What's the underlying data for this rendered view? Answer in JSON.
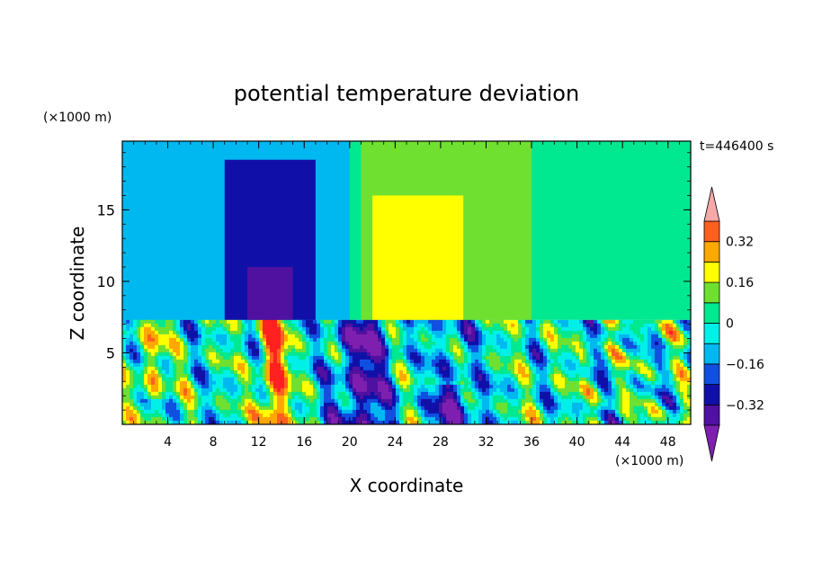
{
  "chart_data": {
    "type": "heatmap",
    "title": "potential temperature deviation",
    "xlabel": "X coordinate",
    "ylabel": "Z coordinate",
    "x_unit": "(×1000 m)",
    "y_unit": "(×1000 m)",
    "time_label": "t=446400 s",
    "xlim": [
      0,
      50
    ],
    "ylim": [
      0,
      19.8
    ],
    "x_ticks": [
      4,
      8,
      12,
      16,
      20,
      24,
      28,
      32,
      36,
      40,
      44,
      48
    ],
    "y_ticks": [
      5,
      10,
      15
    ],
    "colorbar": {
      "levels": [
        -0.4,
        -0.32,
        -0.24,
        -0.16,
        -0.08,
        0,
        0.08,
        0.16,
        0.24,
        0.32,
        0.4
      ],
      "tick_labels": [
        {
          "value": 0.32,
          "label": "0.32"
        },
        {
          "value": 0.16,
          "label": "0.16"
        },
        {
          "value": 0,
          "label": "0"
        },
        {
          "value": -0.16,
          "label": "−0.16"
        },
        {
          "value": -0.32,
          "label": "−0.32"
        }
      ],
      "colors": [
        "#7e1fb0",
        "#5010a0",
        "#1010a8",
        "#1050e0",
        "#00b8f0",
        "#00f0e8",
        "#00e890",
        "#70e030",
        "#ffff00",
        "#ffa800",
        "#ff6020",
        "#ff2020",
        "#f8a8a8"
      ]
    },
    "regions": [
      {
        "x": [
          0,
          50
        ],
        "z": [
          7.3,
          19.8
        ],
        "value": 0.04
      },
      {
        "x": [
          0,
          20
        ],
        "z": [
          7.3,
          19.8
        ],
        "value": -0.1
      },
      {
        "x": [
          9,
          17
        ],
        "z": [
          7.3,
          18.5
        ],
        "value": -0.26
      },
      {
        "x": [
          11,
          15
        ],
        "z": [
          7.3,
          11
        ],
        "value": -0.34
      },
      {
        "x": [
          21,
          36
        ],
        "z": [
          7.3,
          19.8
        ],
        "value": 0.14
      },
      {
        "x": [
          22,
          30
        ],
        "z": [
          7.3,
          16
        ],
        "value": 0.2
      }
    ]
  }
}
